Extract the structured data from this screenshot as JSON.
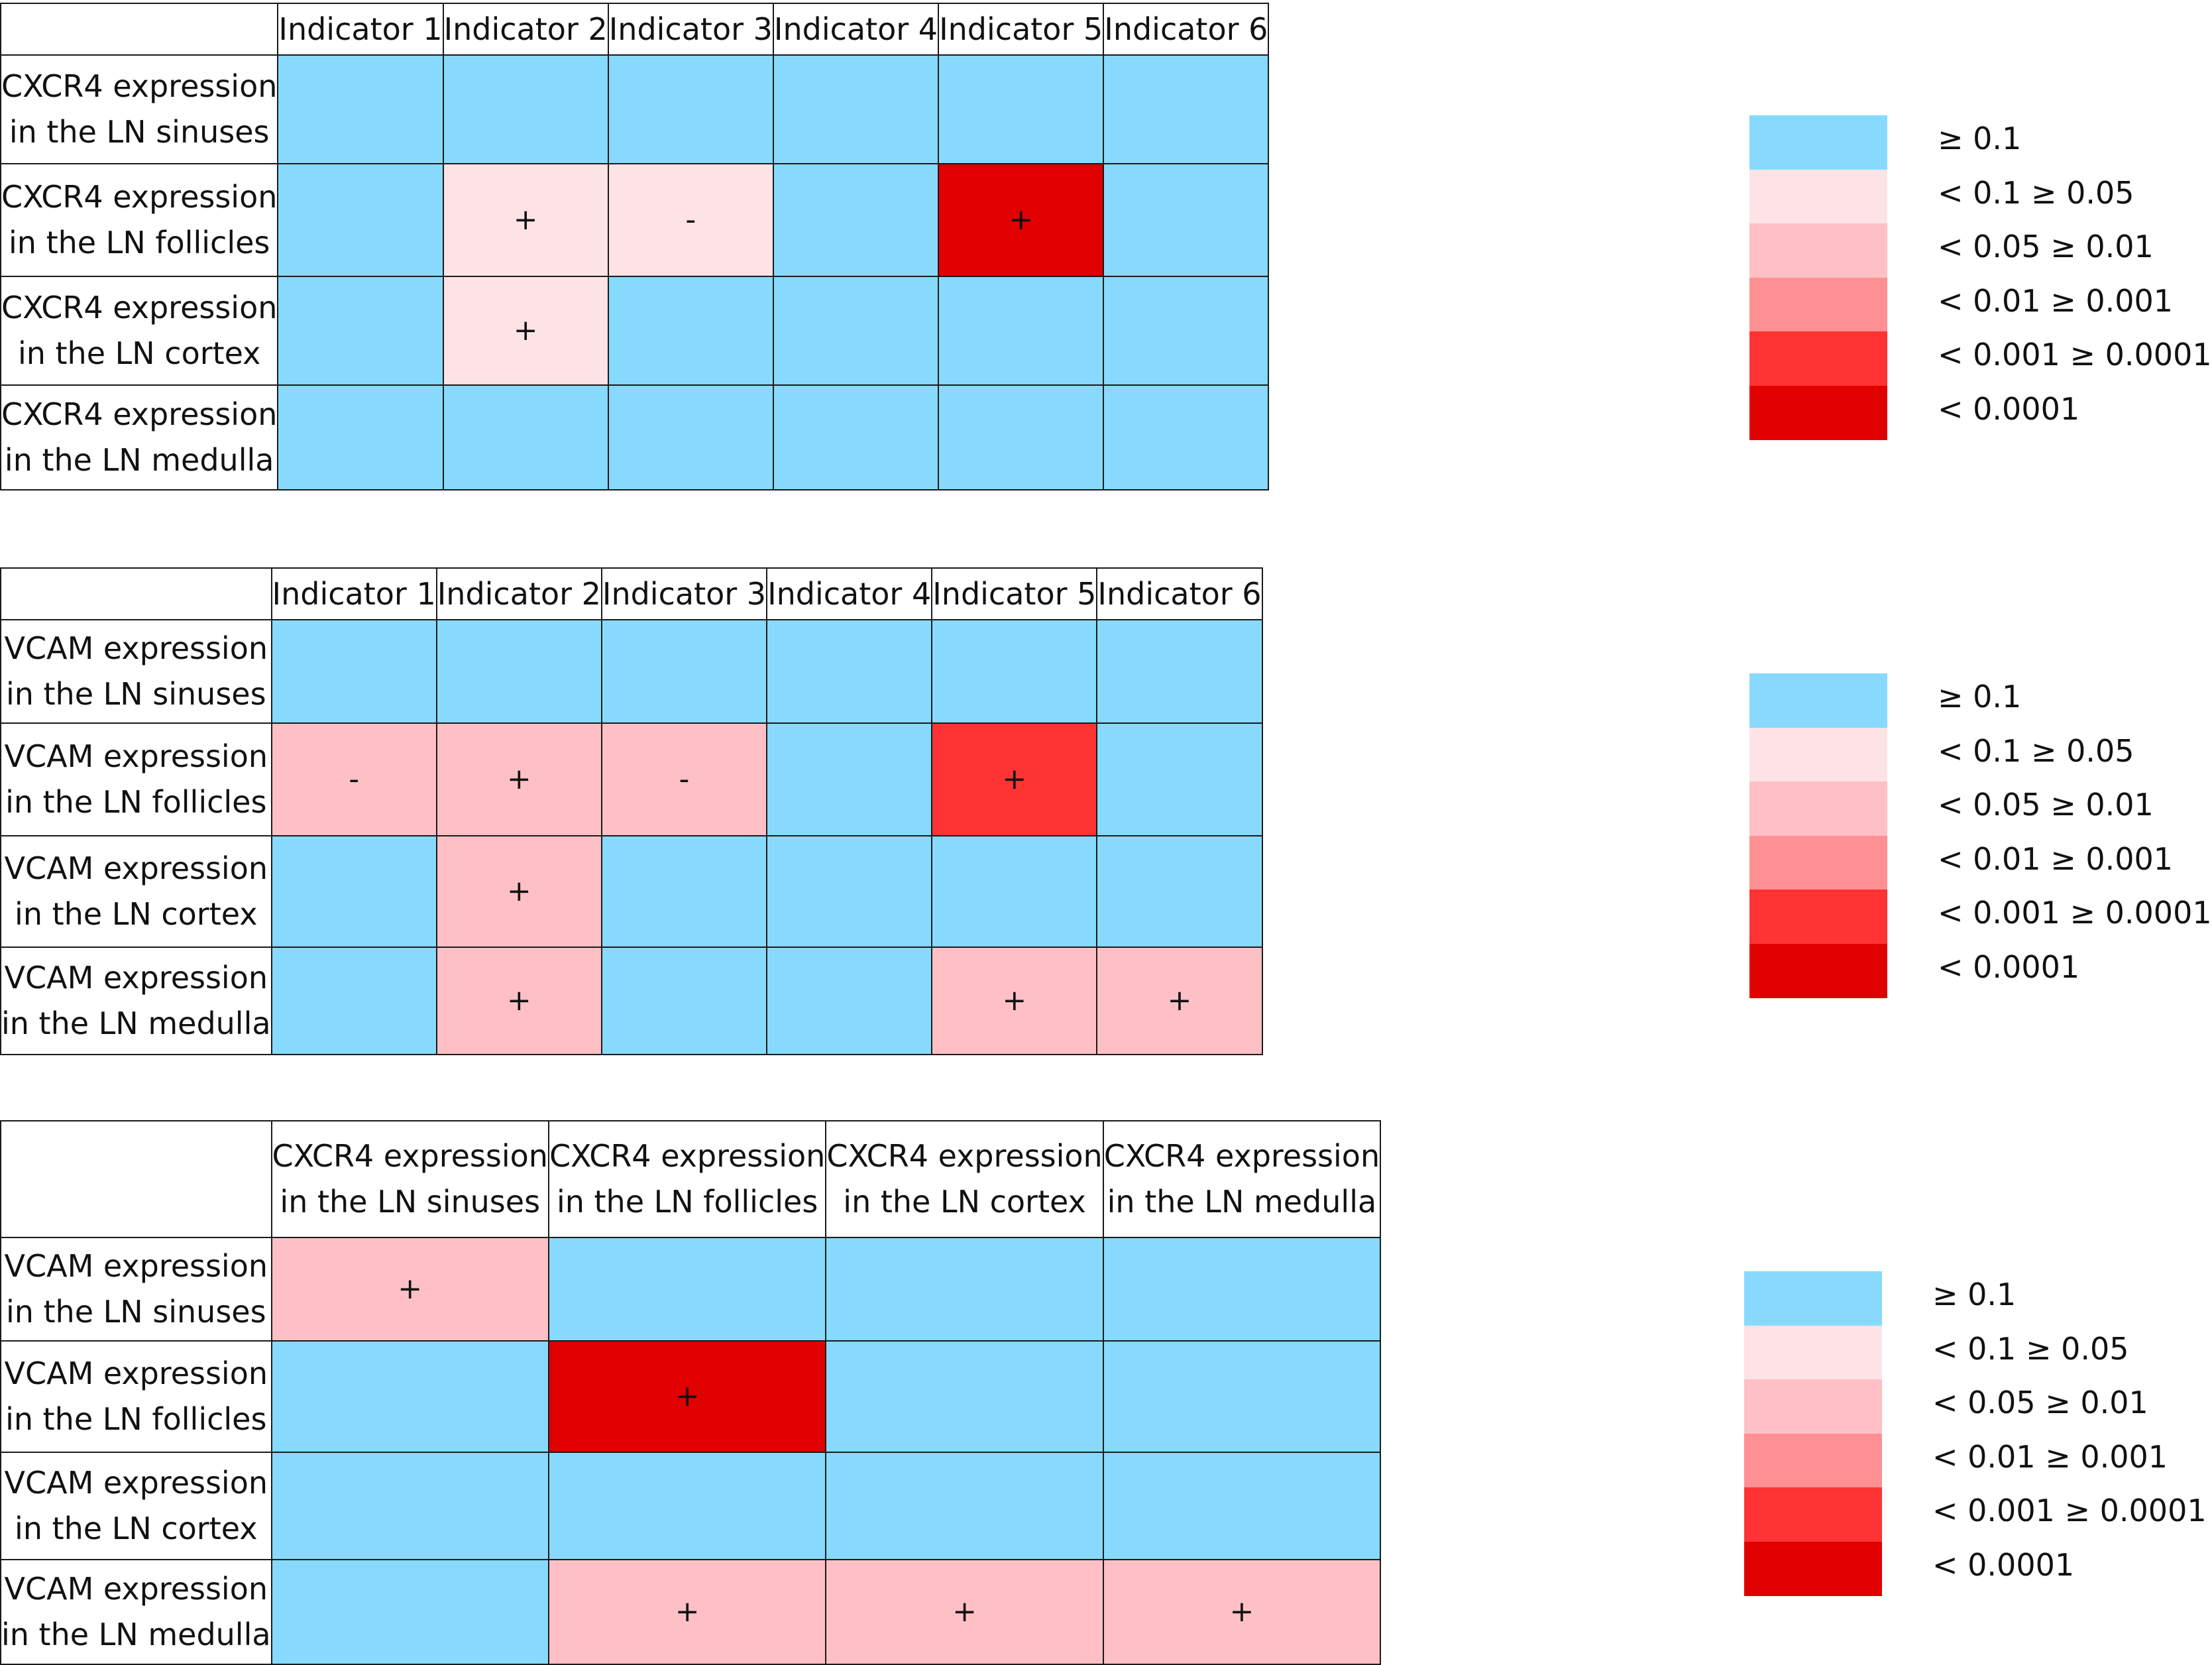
{
  "legend": [
    {
      "label": "≥ 0.1",
      "color": "#87dafd"
    },
    {
      "label": "< 0.1 ≥ 0.05",
      "color": "#fde3e6"
    },
    {
      "label": "< 0.05 ≥ 0.01",
      "color": "#fec0c5"
    },
    {
      "label": "< 0.01 ≥ 0.001",
      "color": "#fe9093"
    },
    {
      "label": "< 0.001 ≥ 0.0001",
      "color": "#fe3333"
    },
    {
      "label": "< 0.0001",
      "color": "#e00000"
    }
  ],
  "chart_data": [
    {
      "type": "heatmap",
      "columns": [
        [
          "Indicator 1"
        ],
        [
          "Indicator 2"
        ],
        [
          "Indicator 3"
        ],
        [
          "Indicator 4"
        ],
        [
          "Indicator 5"
        ],
        [
          "Indicator 6"
        ]
      ],
      "rows": [
        {
          "label": [
            "CXCR4 expression",
            "in the LN sinuses"
          ],
          "levels": [
            0,
            0,
            0,
            0,
            0,
            0
          ],
          "signs": [
            "",
            "",
            "",
            "",
            "",
            ""
          ]
        },
        {
          "label": [
            "CXCR4 expression",
            "in the LN follicles"
          ],
          "levels": [
            0,
            1,
            1,
            0,
            5,
            0
          ],
          "signs": [
            "",
            "+",
            "-",
            "",
            "+",
            ""
          ]
        },
        {
          "label": [
            "CXCR4 expression",
            "in the LN cortex"
          ],
          "levels": [
            0,
            1,
            0,
            0,
            0,
            0
          ],
          "signs": [
            "",
            "+",
            "",
            "",
            "",
            ""
          ]
        },
        {
          "label": [
            "CXCR4 expression",
            "in the LN medulla"
          ],
          "levels": [
            0,
            0,
            0,
            0,
            0,
            0
          ],
          "signs": [
            "",
            "",
            "",
            "",
            "",
            ""
          ]
        }
      ]
    },
    {
      "type": "heatmap",
      "columns": [
        [
          "Indicator 1"
        ],
        [
          "Indicator 2"
        ],
        [
          "Indicator 3"
        ],
        [
          "Indicator 4"
        ],
        [
          "Indicator 5"
        ],
        [
          "Indicator 6"
        ]
      ],
      "rows": [
        {
          "label": [
            "VCAM expression",
            "in the LN sinuses"
          ],
          "levels": [
            0,
            0,
            0,
            0,
            0,
            0
          ],
          "signs": [
            "",
            "",
            "",
            "",
            "",
            ""
          ]
        },
        {
          "label": [
            "VCAM expression",
            "in the LN follicles"
          ],
          "levels": [
            2,
            2,
            2,
            0,
            4,
            0
          ],
          "signs": [
            "-",
            "+",
            "-",
            "",
            "+",
            ""
          ]
        },
        {
          "label": [
            "VCAM expression",
            "in the LN cortex"
          ],
          "levels": [
            0,
            2,
            0,
            0,
            0,
            0
          ],
          "signs": [
            "",
            "+",
            "",
            "",
            "",
            ""
          ]
        },
        {
          "label": [
            "VCAM expression",
            "in the LN medulla"
          ],
          "levels": [
            0,
            2,
            0,
            0,
            2,
            2
          ],
          "signs": [
            "",
            "+",
            "",
            "",
            "+",
            "+"
          ]
        }
      ]
    },
    {
      "type": "heatmap",
      "columns": [
        [
          "CXCR4 expression",
          "in the LN sinuses"
        ],
        [
          "CXCR4 expression",
          "in the LN follicles"
        ],
        [
          "CXCR4 expression",
          "in the LN cortex"
        ],
        [
          "CXCR4 expression",
          "in the LN medulla"
        ]
      ],
      "rows": [
        {
          "label": [
            "VCAM expression",
            "in the LN sinuses"
          ],
          "levels": [
            2,
            0,
            0,
            0
          ],
          "signs": [
            "+",
            "",
            "",
            ""
          ]
        },
        {
          "label": [
            "VCAM expression",
            "in the LN follicles"
          ],
          "levels": [
            0,
            5,
            0,
            0
          ],
          "signs": [
            "",
            "+",
            "",
            ""
          ]
        },
        {
          "label": [
            "VCAM expression",
            "in the LN cortex"
          ],
          "levels": [
            0,
            0,
            0,
            0
          ],
          "signs": [
            "",
            "",
            "",
            ""
          ]
        },
        {
          "label": [
            "VCAM expression",
            "in the LN medulla"
          ],
          "levels": [
            0,
            2,
            2,
            2
          ],
          "signs": [
            "",
            "+",
            "+",
            "+"
          ]
        }
      ]
    }
  ]
}
